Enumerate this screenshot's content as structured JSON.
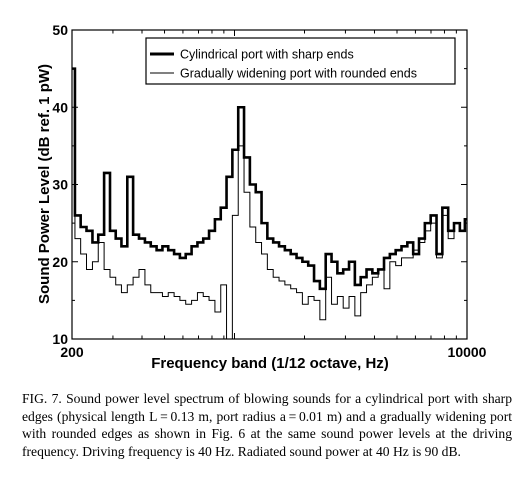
{
  "chart_data": {
    "type": "line",
    "title": "",
    "xlabel": "Frequency band (1/12 octave, Hz)",
    "ylabel": "Sound Power Level (dB ref. 1 pW)",
    "xscale": "log",
    "xlim": [
      200,
      10000
    ],
    "ylim": [
      10,
      50
    ],
    "xticks": [
      {
        "value": 200,
        "label": "200"
      },
      {
        "value": 10000,
        "label": "10000"
      }
    ],
    "yticks": [
      10,
      20,
      30,
      40,
      50
    ],
    "grid": false,
    "legend_position": "top-right",
    "series": [
      {
        "name": "Cylindrical port with sharp ends",
        "line_weight": "thick",
        "x": [
          200,
          212,
          224,
          238,
          252,
          267,
          283,
          300,
          317,
          336,
          356,
          377,
          400,
          424,
          449,
          476,
          504,
          534,
          566,
          599,
          635,
          673,
          713,
          755,
          800,
          848,
          898,
          951,
          1008,
          1068,
          1131,
          1199,
          1270,
          1345,
          1425,
          1510,
          1600,
          1695,
          1796,
          1903,
          2016,
          2136,
          2263,
          2397,
          2540,
          2691,
          2851,
          3020,
          3200,
          3390,
          3592,
          3805,
          4032,
          4271,
          4525,
          4794,
          5079,
          5381,
          5701,
          6040,
          6400,
          6780,
          7184,
          7611,
          8063,
          8543,
          9051,
          9589,
          10000
        ],
        "y": [
          45,
          26,
          24.5,
          24,
          22.5,
          23.5,
          31.5,
          24,
          23,
          22,
          31,
          23.5,
          23,
          22.5,
          22,
          21.5,
          22,
          21.5,
          21,
          20.5,
          21,
          22,
          22.5,
          23,
          24,
          25.5,
          27,
          31,
          34.5,
          40,
          33.5,
          30,
          29,
          25,
          23,
          22.5,
          22,
          21.5,
          21,
          20.5,
          20,
          19.5,
          17.5,
          16.5,
          21,
          20,
          18.5,
          19,
          20,
          17,
          18,
          19,
          18.5,
          19,
          20.5,
          21,
          21.5,
          22,
          22.5,
          21,
          23,
          25,
          26,
          21,
          27,
          24,
          25,
          24,
          25.5
        ]
      },
      {
        "name": "Gradually widening port with rounded ends",
        "line_weight": "thin",
        "x": [
          200,
          212,
          224,
          238,
          252,
          267,
          283,
          300,
          317,
          336,
          356,
          377,
          400,
          424,
          449,
          476,
          504,
          534,
          566,
          599,
          635,
          673,
          713,
          755,
          800,
          848,
          898,
          951,
          1008,
          1068,
          1131,
          1199,
          1270,
          1345,
          1425,
          1510,
          1600,
          1695,
          1796,
          1903,
          2016,
          2136,
          2263,
          2397,
          2540,
          2691,
          2851,
          3020,
          3200,
          3390,
          3592,
          3805,
          4032,
          4271,
          4525,
          4794,
          5079,
          5381,
          5701,
          6040,
          6400,
          6780,
          7184,
          7611,
          8063,
          8543,
          9051,
          9589,
          10000
        ],
        "y": [
          45,
          23,
          21,
          19,
          20,
          22.5,
          19,
          18,
          17,
          16,
          17,
          18,
          19,
          17,
          16,
          16,
          15.5,
          16,
          15.5,
          15,
          14.5,
          15,
          16,
          15.5,
          15,
          13.5,
          17,
          10,
          26,
          35,
          29,
          24.5,
          22.5,
          21,
          19,
          18,
          17.5,
          17,
          16.5,
          16,
          14.5,
          15.5,
          15,
          12.5,
          18,
          14.5,
          15.5,
          14,
          15.5,
          13,
          16,
          17,
          18,
          19,
          16.5,
          20,
          19.5,
          20.5,
          20.5,
          21.5,
          22.5,
          24,
          25,
          20.5,
          26,
          23,
          25,
          24,
          25
        ]
      }
    ]
  },
  "caption": "FIG. 7. Sound power level spectrum of blowing sounds for a cylindrical port with sharp edges (physical length L = 0.13 m, port radius a = 0.01 m) and a gradually widening port with rounded edges as shown in Fig. 6 at the same sound power levels at the driving frequency. Driving frequency is 40 Hz. Radiated sound power at 40 Hz is 90 dB."
}
